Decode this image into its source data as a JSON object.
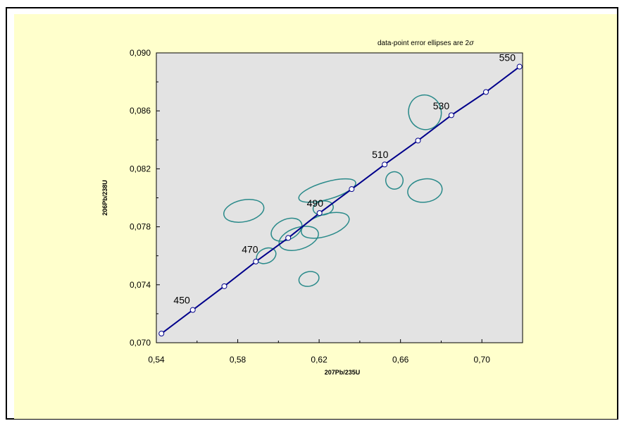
{
  "chart_data": {
    "type": "scatter",
    "title": "",
    "xlabel": "207Pb/235U",
    "ylabel": "206Pb/238U",
    "xlim": [
      0.54,
      0.72
    ],
    "ylim": [
      0.07,
      0.09
    ],
    "x_ticks": [
      0.54,
      0.58,
      0.62,
      0.66,
      0.7
    ],
    "x_tick_labels": [
      "0,54",
      "0,58",
      "0,62",
      "0,66",
      "0,70"
    ],
    "y_ticks": [
      0.07,
      0.074,
      0.078,
      0.082,
      0.086,
      0.09
    ],
    "y_tick_labels": [
      "0,070",
      "0,074",
      "0,078",
      "0,082",
      "0,086",
      "0,090"
    ],
    "annotation_prefix": "data-point error ellipses are 2",
    "annotation_symbol": "σ",
    "grid": false,
    "colors": {
      "plot_background": "#e3e3e3",
      "page_background": "#ffffcc",
      "concordia_line": "#00008b",
      "ellipse_stroke": "#2a8a8a"
    },
    "concordia_markers": [
      {
        "x": 0.5425,
        "y": 0.07063
      },
      {
        "x": 0.5579,
        "y": 0.07226
      },
      {
        "x": 0.5734,
        "y": 0.0739
      },
      {
        "x": 0.5889,
        "y": 0.0756
      },
      {
        "x": 0.6048,
        "y": 0.07723
      },
      {
        "x": 0.6202,
        "y": 0.07895
      },
      {
        "x": 0.636,
        "y": 0.0806
      },
      {
        "x": 0.6522,
        "y": 0.0823
      },
      {
        "x": 0.6686,
        "y": 0.08395
      },
      {
        "x": 0.685,
        "y": 0.0857
      },
      {
        "x": 0.702,
        "y": 0.0873
      },
      {
        "x": 0.7185,
        "y": 0.08905
      }
    ],
    "age_labels": [
      {
        "text": "450",
        "x": 0.5525,
        "y": 0.0727
      },
      {
        "text": "470",
        "x": 0.586,
        "y": 0.0762
      },
      {
        "text": "490",
        "x": 0.618,
        "y": 0.0794
      },
      {
        "text": "510",
        "x": 0.65,
        "y": 0.08275
      },
      {
        "text": "530",
        "x": 0.68,
        "y": 0.0861
      },
      {
        "text": "550",
        "x": 0.7125,
        "y": 0.08945
      }
    ],
    "ellipses": [
      {
        "cx": 0.583,
        "cy": 0.0791,
        "rx": 0.02,
        "ry": 0.00075,
        "angle": 12
      },
      {
        "cx": 0.624,
        "cy": 0.0805,
        "rx": 0.029,
        "ry": 0.0006,
        "angle": 16
      },
      {
        "cx": 0.672,
        "cy": 0.0859,
        "rx": 0.016,
        "ry": 0.0012,
        "angle": 18
      },
      {
        "cx": 0.657,
        "cy": 0.0812,
        "rx": 0.0085,
        "ry": 0.0006,
        "angle": 22
      },
      {
        "cx": 0.672,
        "cy": 0.0805,
        "rx": 0.017,
        "ry": 0.0008,
        "angle": 8
      },
      {
        "cx": 0.622,
        "cy": 0.0793,
        "rx": 0.01,
        "ry": 0.00048,
        "angle": 10
      },
      {
        "cx": 0.623,
        "cy": 0.0781,
        "rx": 0.0245,
        "ry": 0.00075,
        "angle": 18
      },
      {
        "cx": 0.604,
        "cy": 0.0778,
        "rx": 0.016,
        "ry": 0.0007,
        "angle": 25
      },
      {
        "cx": 0.61,
        "cy": 0.0772,
        "rx": 0.02,
        "ry": 0.00075,
        "angle": 18
      },
      {
        "cx": 0.594,
        "cy": 0.076,
        "rx": 0.01,
        "ry": 0.0005,
        "angle": 25
      },
      {
        "cx": 0.615,
        "cy": 0.0744,
        "rx": 0.01,
        "ry": 0.0005,
        "angle": 14
      }
    ]
  }
}
